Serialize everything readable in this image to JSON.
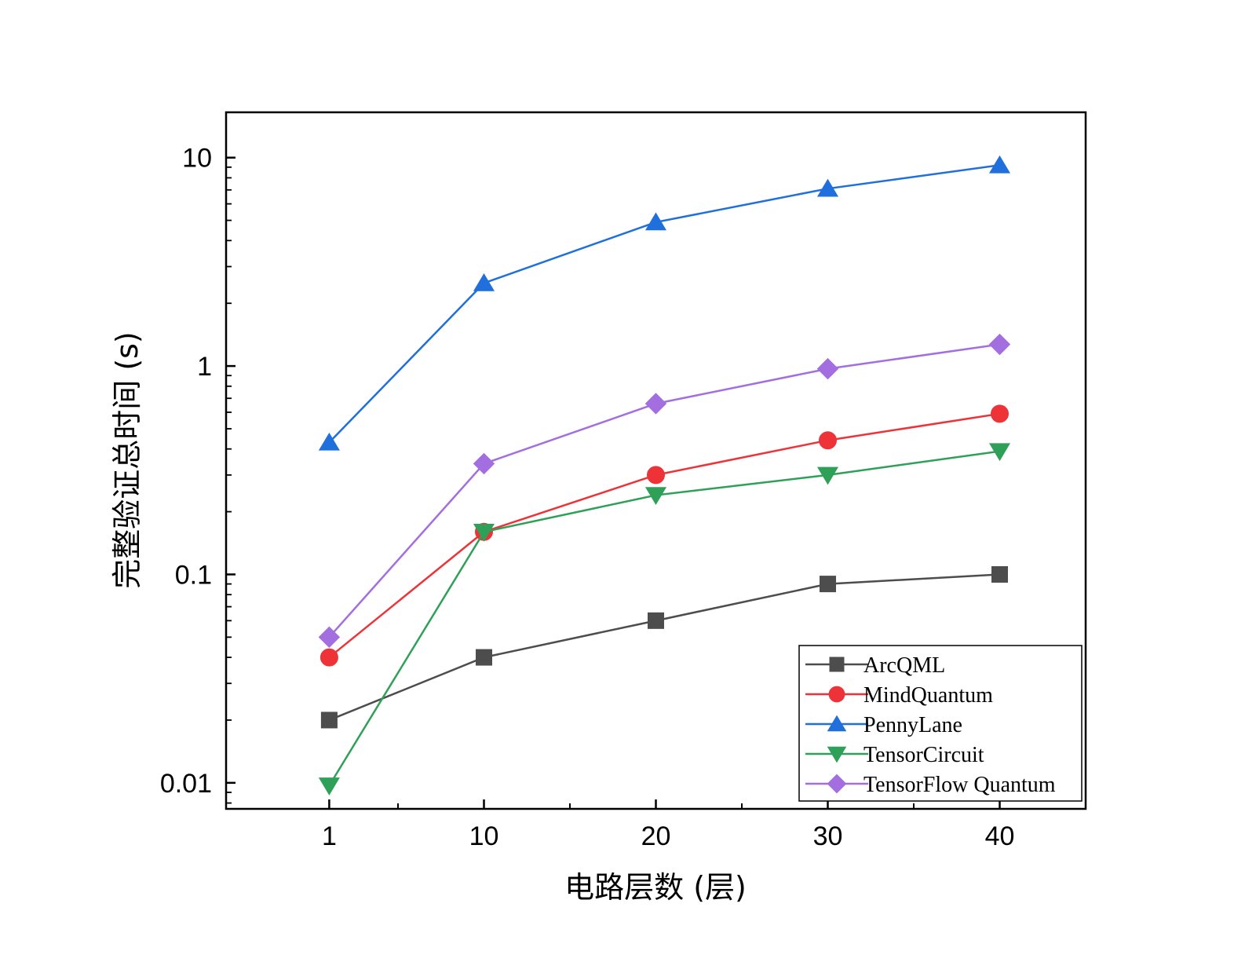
{
  "chart_data": {
    "type": "line",
    "xlabel": "电路层数 (层)",
    "ylabel": "完整验证总时间 (s)",
    "x": [
      1,
      10,
      20,
      30,
      40
    ],
    "x_tick_labels": [
      "1",
      "10",
      "20",
      "30",
      "40"
    ],
    "y_scale": "log",
    "y_ticks": [
      0.01,
      0.1,
      1,
      10
    ],
    "y_tick_labels": [
      "0.01",
      "0.1",
      "1",
      "10"
    ],
    "ylim": [
      0.0075,
      16.5
    ],
    "xlim": [
      -5,
      45
    ],
    "grid": false,
    "legend_position": "bottom-right",
    "series": [
      {
        "name": "ArcQML",
        "color": "#4d4d4d",
        "marker": "square",
        "values": [
          0.02,
          0.04,
          0.06,
          0.09,
          0.1
        ]
      },
      {
        "name": "MindQuantum",
        "color": "#ee3338",
        "marker": "circle",
        "values": [
          0.04,
          0.16,
          0.3,
          0.44,
          0.59
        ]
      },
      {
        "name": "PennyLane",
        "color": "#1f6fdc",
        "marker": "triangle-up",
        "values": [
          0.43,
          2.5,
          4.9,
          7.1,
          9.2
        ]
      },
      {
        "name": "TensorCircuit",
        "color": "#2fa058",
        "marker": "triangle-down",
        "values": [
          0.0097,
          0.16,
          0.24,
          0.3,
          0.39
        ]
      },
      {
        "name": "TensorFlow Quantum",
        "color": "#a36ee0",
        "marker": "diamond",
        "values": [
          0.05,
          0.34,
          0.66,
          0.97,
          1.27
        ]
      }
    ]
  }
}
